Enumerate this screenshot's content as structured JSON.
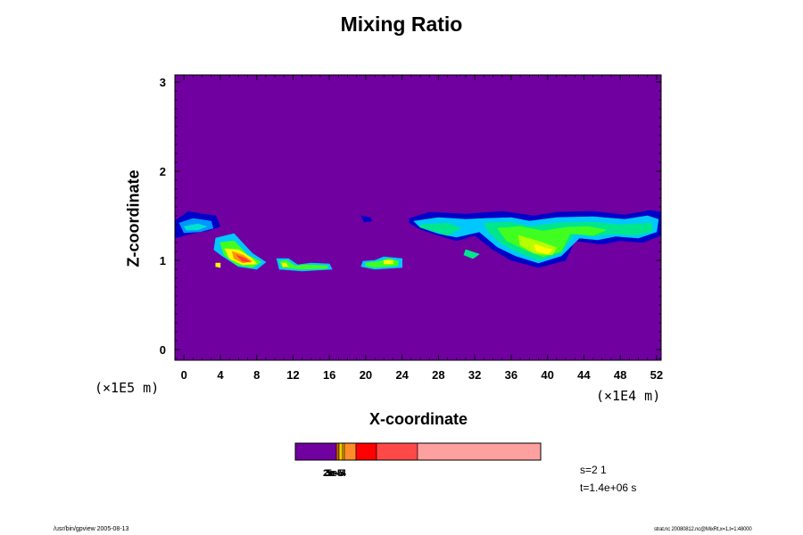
{
  "chart_data": {
    "type": "heatmap",
    "title": "Mixing Ratio",
    "xlabel": "X-coordinate",
    "ylabel": "Z-coordinate",
    "x_unit": "(×1E4 m)",
    "y_unit": "(×1E5 m)",
    "x_ticks": [
      "0",
      "4",
      "8",
      "12",
      "16",
      "20",
      "24",
      "28",
      "32",
      "36",
      "40",
      "44",
      "48",
      "52"
    ],
    "y_ticks": [
      "0",
      "1",
      "2",
      "3"
    ],
    "xlim": [
      -1,
      52.5
    ],
    "ylim": [
      -0.12,
      3.08
    ],
    "background_color": "#7000a0",
    "colorbar": {
      "colors": [
        "#7000a0",
        "#c86400",
        "#ffc800",
        "#ff8c28",
        "#ff0000",
        "#ff4848",
        "#ffa0a0"
      ],
      "labels": [
        "2e-5",
        "3e-5",
        "5e-4"
      ]
    },
    "features": [
      {
        "kind": "band",
        "color": "#0000c8",
        "points": [
          [
            -1,
            1.44
          ],
          [
            0.5,
            1.55
          ],
          [
            2,
            1.52
          ],
          [
            3.5,
            1.5
          ],
          [
            4,
            1.38
          ],
          [
            2.5,
            1.33
          ],
          [
            0.8,
            1.3
          ],
          [
            -1,
            1.25
          ]
        ]
      },
      {
        "kind": "band",
        "color": "#0096ff",
        "points": [
          [
            -0.5,
            1.42
          ],
          [
            1,
            1.47
          ],
          [
            3,
            1.44
          ],
          [
            3.2,
            1.36
          ],
          [
            1.8,
            1.32
          ],
          [
            0,
            1.31
          ]
        ]
      },
      {
        "kind": "band",
        "color": "#00e0d0",
        "points": [
          [
            0,
            1.38
          ],
          [
            1.5,
            1.41
          ],
          [
            2.5,
            1.38
          ],
          [
            1.5,
            1.34
          ],
          [
            0.3,
            1.34
          ]
        ]
      },
      {
        "kind": "band",
        "color": "#0000c8",
        "points": [
          [
            19.5,
            1.5
          ],
          [
            20.5,
            1.48
          ],
          [
            20.7,
            1.44
          ],
          [
            19.8,
            1.43
          ]
        ]
      },
      {
        "kind": "band",
        "color": "#0000c8",
        "points": [
          [
            24.8,
            1.47
          ],
          [
            27,
            1.54
          ],
          [
            31,
            1.52
          ],
          [
            35,
            1.55
          ],
          [
            38.5,
            1.5
          ],
          [
            41,
            1.54
          ],
          [
            45,
            1.55
          ],
          [
            48.5,
            1.51
          ],
          [
            51.3,
            1.56
          ],
          [
            52.5,
            1.54
          ],
          [
            52.5,
            1.28
          ],
          [
            50.5,
            1.2
          ],
          [
            48,
            1.22
          ],
          [
            46,
            1.18
          ],
          [
            43,
            1.22
          ],
          [
            42,
            1.0
          ],
          [
            39,
            0.92
          ],
          [
            36,
            1.0
          ],
          [
            34,
            1.12
          ],
          [
            32,
            1.28
          ],
          [
            30,
            1.22
          ],
          [
            28,
            1.28
          ],
          [
            26,
            1.35
          ],
          [
            24.8,
            1.42
          ]
        ]
      },
      {
        "kind": "band",
        "color": "#00c8ff",
        "points": [
          [
            25.3,
            1.44
          ],
          [
            28,
            1.48
          ],
          [
            31,
            1.46
          ],
          [
            33,
            1.47
          ],
          [
            36,
            1.48
          ],
          [
            38,
            1.44
          ],
          [
            41,
            1.48
          ],
          [
            45,
            1.49
          ],
          [
            48.5,
            1.46
          ],
          [
            51,
            1.5
          ],
          [
            52.2,
            1.46
          ],
          [
            52,
            1.32
          ],
          [
            50,
            1.25
          ],
          [
            47.5,
            1.27
          ],
          [
            45.5,
            1.23
          ],
          [
            43.5,
            1.25
          ],
          [
            41.5,
            1.05
          ],
          [
            39,
            0.97
          ],
          [
            36.5,
            1.05
          ],
          [
            34.5,
            1.15
          ],
          [
            32.5,
            1.32
          ],
          [
            30,
            1.26
          ],
          [
            28,
            1.3
          ],
          [
            26,
            1.37
          ]
        ]
      },
      {
        "kind": "band",
        "color": "#00e68c",
        "points": [
          [
            26,
            1.4
          ],
          [
            29,
            1.42
          ],
          [
            30.5,
            1.36
          ],
          [
            29,
            1.28
          ],
          [
            27.5,
            1.33
          ],
          [
            26,
            1.37
          ]
        ]
      },
      {
        "kind": "band",
        "color": "#00e68c",
        "points": [
          [
            33,
            1.42
          ],
          [
            36,
            1.43
          ],
          [
            38,
            1.38
          ],
          [
            41,
            1.42
          ],
          [
            45,
            1.43
          ],
          [
            48,
            1.4
          ],
          [
            51.5,
            1.42
          ],
          [
            51.5,
            1.32
          ],
          [
            49.5,
            1.28
          ],
          [
            47,
            1.3
          ],
          [
            45,
            1.27
          ],
          [
            43,
            1.3
          ],
          [
            41.5,
            1.08
          ],
          [
            39,
            1.0
          ],
          [
            37,
            1.08
          ],
          [
            35,
            1.18
          ],
          [
            33.5,
            1.32
          ]
        ]
      },
      {
        "kind": "band",
        "color": "#40ff20",
        "points": [
          [
            34.5,
            1.36
          ],
          [
            37,
            1.38
          ],
          [
            39.5,
            1.33
          ],
          [
            42,
            1.37
          ],
          [
            44.5,
            1.38
          ],
          [
            46.5,
            1.34
          ],
          [
            45,
            1.28
          ],
          [
            42.5,
            1.3
          ],
          [
            41.5,
            1.1
          ],
          [
            39.5,
            1.04
          ],
          [
            37.5,
            1.12
          ],
          [
            35.5,
            1.22
          ]
        ]
      },
      {
        "kind": "band",
        "color": "#b4ff00",
        "points": [
          [
            36.8,
            1.28
          ],
          [
            39.5,
            1.2
          ],
          [
            41,
            1.14
          ],
          [
            40.5,
            1.06
          ],
          [
            38.5,
            1.08
          ],
          [
            37,
            1.17
          ]
        ]
      },
      {
        "kind": "band",
        "color": "#ffff00",
        "points": [
          [
            38.5,
            1.18
          ],
          [
            40.5,
            1.12
          ],
          [
            40,
            1.07
          ],
          [
            38.8,
            1.1
          ]
        ]
      },
      {
        "kind": "band",
        "color": "#00e68c",
        "points": [
          [
            31,
            1.12
          ],
          [
            32.5,
            1.07
          ],
          [
            31.8,
            1.02
          ],
          [
            30.8,
            1.06
          ]
        ]
      },
      {
        "kind": "band",
        "color": "#00c8ff",
        "points": [
          [
            3.5,
            1.25
          ],
          [
            5.5,
            1.3
          ],
          [
            7.5,
            1.08
          ],
          [
            9,
            0.98
          ],
          [
            8,
            0.9
          ],
          [
            6,
            0.93
          ],
          [
            4.2,
            1.05
          ],
          [
            3.3,
            1.12
          ]
        ]
      },
      {
        "kind": "band",
        "color": "#40ff20",
        "points": [
          [
            4,
            1.2
          ],
          [
            5.5,
            1.22
          ],
          [
            7,
            1.06
          ],
          [
            8.5,
            0.98
          ],
          [
            7.5,
            0.92
          ],
          [
            5.8,
            0.95
          ],
          [
            4.4,
            1.06
          ]
        ]
      },
      {
        "kind": "band",
        "color": "#ffff00",
        "points": [
          [
            4.5,
            1.13
          ],
          [
            6,
            1.12
          ],
          [
            7.5,
            1.02
          ],
          [
            8,
            0.96
          ],
          [
            6.5,
            0.95
          ],
          [
            5,
            1.02
          ]
        ]
      },
      {
        "kind": "band",
        "color": "#ff9600",
        "points": [
          [
            5.3,
            1.1
          ],
          [
            6.5,
            1.06
          ],
          [
            7.5,
            0.99
          ],
          [
            6.5,
            0.97
          ],
          [
            5.5,
            1.02
          ]
        ]
      },
      {
        "kind": "band",
        "color": "#ff3c3c",
        "points": [
          [
            5.8,
            1.06
          ],
          [
            6.8,
            1.02
          ],
          [
            7.3,
            0.98
          ],
          [
            6.4,
            0.99
          ]
        ]
      },
      {
        "kind": "band",
        "color": "#ffff00",
        "points": [
          [
            3.5,
            0.97
          ],
          [
            4,
            0.97
          ],
          [
            4,
            0.92
          ],
          [
            3.5,
            0.93
          ]
        ]
      },
      {
        "kind": "band",
        "color": "#00c8ff",
        "points": [
          [
            10.2,
            1.02
          ],
          [
            11.5,
            1.02
          ],
          [
            12.5,
            0.95
          ],
          [
            14,
            0.97
          ],
          [
            16,
            0.96
          ],
          [
            16.3,
            0.9
          ],
          [
            13,
            0.88
          ],
          [
            10.5,
            0.9
          ]
        ]
      },
      {
        "kind": "band",
        "color": "#40ff20",
        "points": [
          [
            10.5,
            0.99
          ],
          [
            11.3,
            1.0
          ],
          [
            12.2,
            0.94
          ],
          [
            13.5,
            0.95
          ],
          [
            15.8,
            0.94
          ],
          [
            15.8,
            0.91
          ],
          [
            13,
            0.9
          ],
          [
            10.8,
            0.92
          ]
        ]
      },
      {
        "kind": "band",
        "color": "#ffff00",
        "points": [
          [
            10.8,
            0.97
          ],
          [
            11.2,
            0.97
          ],
          [
            11.5,
            0.93
          ],
          [
            10.9,
            0.93
          ]
        ]
      },
      {
        "kind": "band",
        "color": "#00c8ff",
        "points": [
          [
            19.7,
            0.99
          ],
          [
            21,
            1.0
          ],
          [
            22,
            1.04
          ],
          [
            24,
            1.02
          ],
          [
            24,
            0.92
          ],
          [
            21,
            0.9
          ],
          [
            19.5,
            0.93
          ]
        ]
      },
      {
        "kind": "band",
        "color": "#40ff20",
        "points": [
          [
            20,
            0.97
          ],
          [
            21.5,
            0.99
          ],
          [
            22.5,
            1.02
          ],
          [
            23.6,
            0.99
          ],
          [
            23.5,
            0.94
          ],
          [
            21,
            0.92
          ],
          [
            20,
            0.94
          ]
        ]
      },
      {
        "kind": "band",
        "color": "#ffff00",
        "points": [
          [
            22,
            1.0
          ],
          [
            23,
            1.0
          ],
          [
            23,
            0.96
          ],
          [
            22,
            0.96
          ]
        ]
      }
    ]
  },
  "info": {
    "s": "s=2 1",
    "t": "t=1.4e+06 s"
  },
  "footer": {
    "left": "/usr/bin/gpview 2005-08-13",
    "right": "strat.nc 20080812.nc@MixRt,x=1,t=1:48000"
  }
}
